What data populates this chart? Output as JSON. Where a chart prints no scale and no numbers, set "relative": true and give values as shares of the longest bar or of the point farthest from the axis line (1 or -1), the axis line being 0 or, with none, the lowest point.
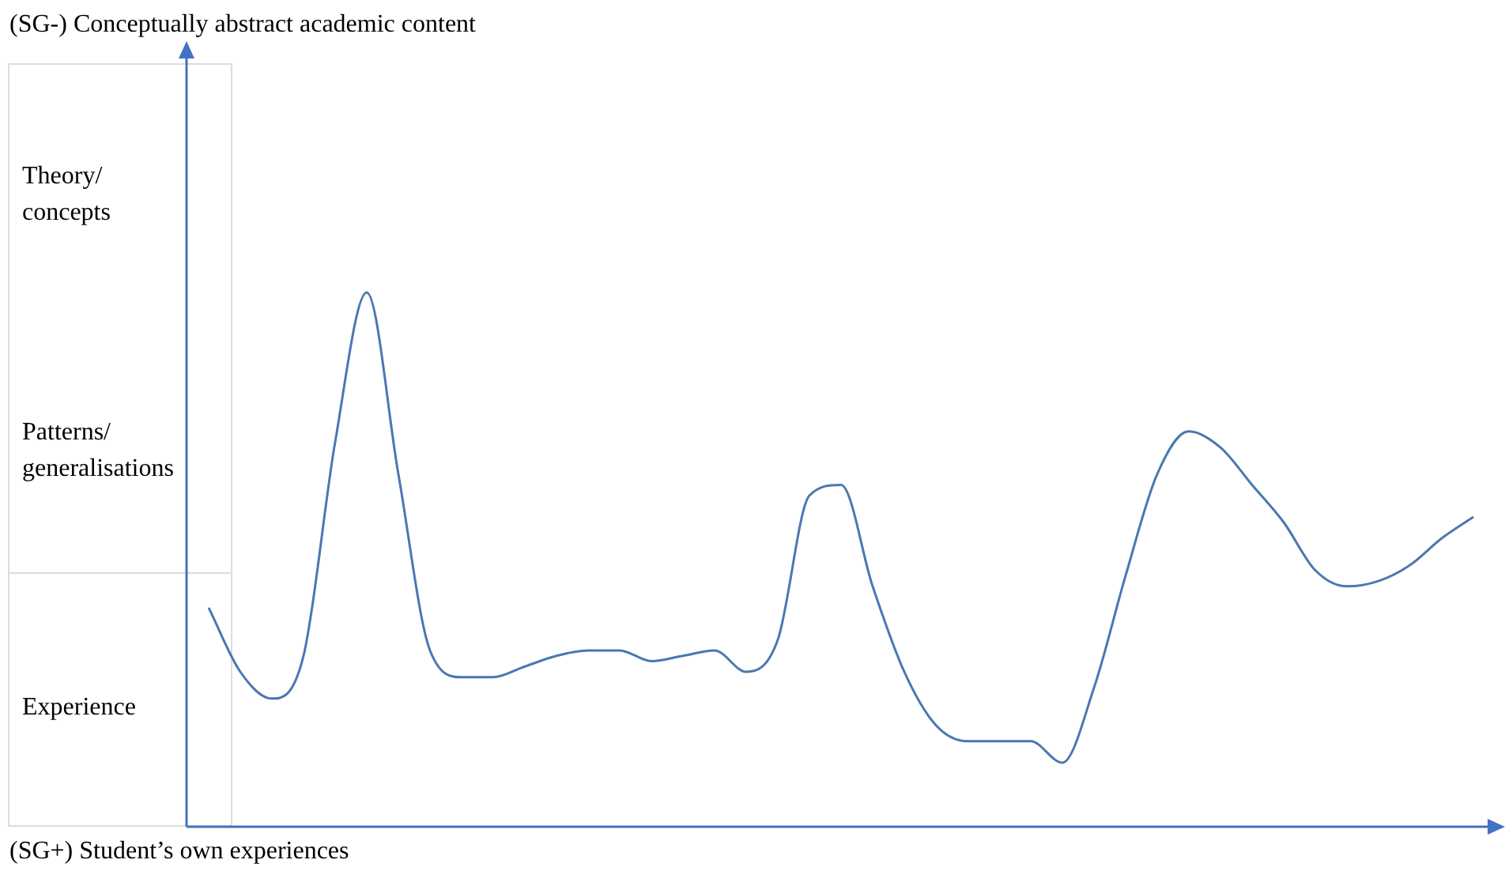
{
  "chart_data": {
    "type": "line",
    "title": "(SG-) Conceptually abstract academic content",
    "xlabel": "(SG+) Student’s own experiences",
    "relative": true,
    "marker": "none",
    "legend": false,
    "annotations": [
      "Theory/ concepts",
      "Patterns/ generalisations",
      "Experience"
    ],
    "categories": [
      null,
      null,
      null,
      null,
      null,
      null,
      null,
      null,
      null,
      null,
      null,
      null,
      null,
      null,
      null,
      null,
      null,
      null,
      null,
      null,
      null,
      null,
      null,
      null,
      null,
      null,
      null,
      null,
      null,
      null,
      null,
      null,
      null,
      null,
      null,
      null,
      null,
      null,
      null,
      null,
      null
    ],
    "series": [
      {
        "color": "#4a78b0",
        "values": [
          0.41,
          0.29,
          0.24,
          0.32,
          0.72,
          1,
          0.66,
          0.33,
          0.28,
          0.28,
          0.3,
          0.32,
          0.33,
          0.33,
          0.31,
          0.32,
          0.33,
          0.29,
          0.35,
          0.62,
          0.64,
          0.45,
          0.29,
          0.19,
          0.16,
          0.16,
          0.16,
          0.12,
          0.26,
          0.47,
          0.66,
          0.74,
          0.71,
          0.64,
          0.57,
          0.48,
          0.45,
          0.46,
          0.49,
          0.54,
          0.58
        ]
      }
    ]
  }
}
